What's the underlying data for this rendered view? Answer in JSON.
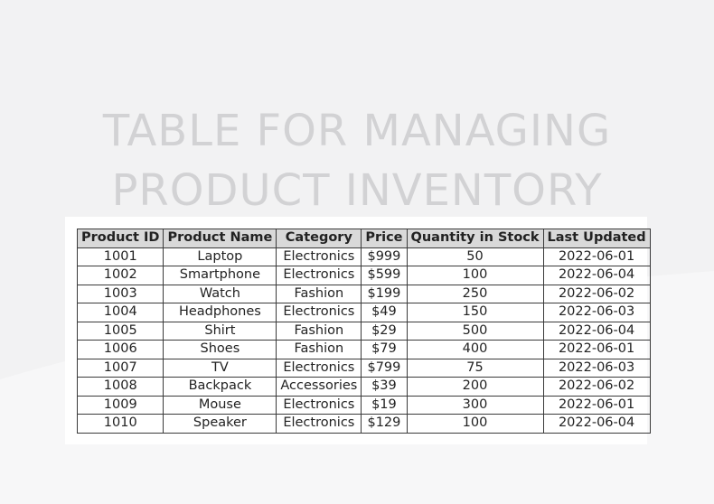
{
  "title": {
    "line1": "TABLE FOR MANAGING",
    "line2": "PRODUCT INVENTORY"
  },
  "colors": {
    "background": "#f2f2f3",
    "title": "#d2d2d4",
    "header_fill": "#d9d9d9",
    "border": "#3a3a3a"
  },
  "table": {
    "headers": [
      "Product ID",
      "Product Name",
      "Category",
      "Price",
      "Quantity in Stock",
      "Last Updated"
    ],
    "rows": [
      [
        "1001",
        "Laptop",
        "Electronics",
        "$999",
        "50",
        "2022-06-01"
      ],
      [
        "1002",
        "Smartphone",
        "Electronics",
        "$599",
        "100",
        "2022-06-04"
      ],
      [
        "1003",
        "Watch",
        "Fashion",
        "$199",
        "250",
        "2022-06-02"
      ],
      [
        "1004",
        "Headphones",
        "Electronics",
        "$49",
        "150",
        "2022-06-03"
      ],
      [
        "1005",
        "Shirt",
        "Fashion",
        "$29",
        "500",
        "2022-06-04"
      ],
      [
        "1006",
        "Shoes",
        "Fashion",
        "$79",
        "400",
        "2022-06-01"
      ],
      [
        "1007",
        "TV",
        "Electronics",
        "$799",
        "75",
        "2022-06-03"
      ],
      [
        "1008",
        "Backpack",
        "Accessories",
        "$39",
        "200",
        "2022-06-02"
      ],
      [
        "1009",
        "Mouse",
        "Electronics",
        "$19",
        "300",
        "2022-06-01"
      ],
      [
        "1010",
        "Speaker",
        "Electronics",
        "$129",
        "100",
        "2022-06-04"
      ]
    ]
  }
}
